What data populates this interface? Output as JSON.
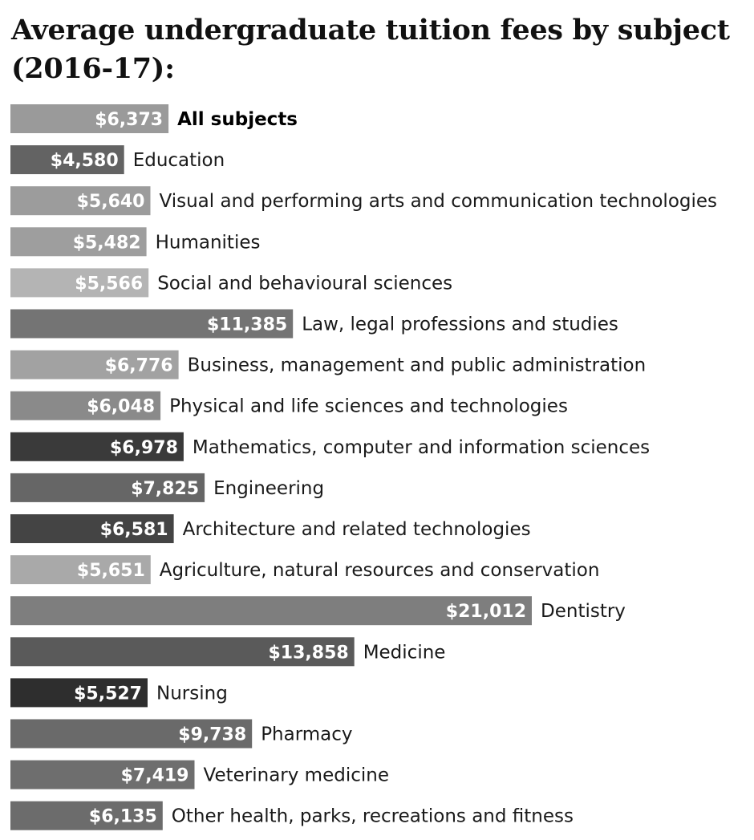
{
  "chart_data": {
    "type": "bar",
    "orientation": "horizontal",
    "title": "Average undergraduate tuition fees by subject (2016-17):",
    "xlim": [
      0,
      21012
    ],
    "grid": false,
    "legend": "none",
    "value_prefix": "$",
    "categories": [
      "All subjects",
      "Education",
      "Visual and performing arts and communication technologies",
      "Humanities",
      "Social and behavioural sciences",
      "Law, legal professions and studies",
      "Business, management and public administration",
      "Physical and life sciences and technologies",
      "Mathematics, computer and information sciences",
      "Engineering",
      "Architecture and related technologies",
      "Agriculture, natural resources and conservation",
      "Dentistry",
      "Medicine",
      "Nursing",
      "Pharmacy",
      "Veterinary medicine",
      "Other health, parks, recreations and fitness"
    ],
    "values": [
      6373,
      4580,
      5640,
      5482,
      5566,
      11385,
      6776,
      6048,
      6978,
      7825,
      6581,
      5651,
      21012,
      13858,
      5527,
      9738,
      7419,
      6135
    ],
    "value_labels": [
      "$6,373",
      "$4,580",
      "$5,640",
      "$5,482",
      "$5,566",
      "$11,385",
      "$6,776",
      "$6,048",
      "$6,978",
      "$7,825",
      "$6,581",
      "$5,651",
      "$21,012",
      "$13,858",
      "$5,527",
      "$9,738",
      "$7,419",
      "$6,135"
    ],
    "bar_colors": [
      "#9a9a9a",
      "#636363",
      "#9c9c9c",
      "#9e9e9e",
      "#b4b4b4",
      "#747474",
      "#a2a2a2",
      "#8a8a8a",
      "#3a3a3a",
      "#666666",
      "#444444",
      "#a9a9a9",
      "#7e7e7e",
      "#5a5a5a",
      "#2e2e2e",
      "#6a6a6a",
      "#6e6e6e",
      "#6c6c6c"
    ],
    "emphasized_category": "All subjects"
  }
}
